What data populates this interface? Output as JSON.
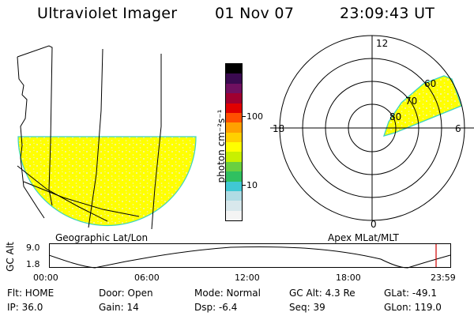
{
  "header": {
    "instrument": "Ultraviolet Imager",
    "date": "01 Nov 07",
    "time": "23:09:43 UT"
  },
  "left_panel": {
    "caption": "Geographic Lat/Lon"
  },
  "right_panel": {
    "caption": "Apex MLat/MLT",
    "mlt_labels": {
      "top": "12",
      "right": "6",
      "bottom": "0",
      "left": "18"
    },
    "mlat_labels": [
      "60",
      "70",
      "80"
    ]
  },
  "colorbar": {
    "unit": "photon cm⁻²s⁻¹",
    "ticks": [
      "100",
      "10"
    ],
    "colors": [
      "#f4f4f4",
      "#d8e8ec",
      "#b0dce4",
      "#40c8d4",
      "#30c060",
      "#6ad040",
      "#c8f000",
      "#ffff00",
      "#ffd000",
      "#ffa000",
      "#ff5000",
      "#e00000",
      "#a00030",
      "#701060",
      "#3a0a50",
      "#000000"
    ]
  },
  "alt_plot": {
    "ylabel": "GC Alt",
    "y_ticks": [
      "9.0",
      "1.8"
    ],
    "x_ticks": [
      "00:00",
      "06:00",
      "12:00",
      "18:00",
      "23:59"
    ],
    "marker_color": "#d00000"
  },
  "info": {
    "row1": {
      "flt": "Flt: HOME",
      "door": "Door: Open",
      "mode": "Mode:  Normal",
      "gcalt": "GC Alt: 4.3 Re",
      "glat": "GLat:  -49.1"
    },
    "row2": {
      "ip": "IP: 36.0",
      "gain": "Gain: 14",
      "dsp": "Dsp:    -6.4",
      "seq": "Seq: 39",
      "glon": "GLon:  119.0"
    }
  },
  "colors": {
    "emission": "#ffff00",
    "edge": "#3ad4c0",
    "speckle": "#f4f4a0"
  }
}
